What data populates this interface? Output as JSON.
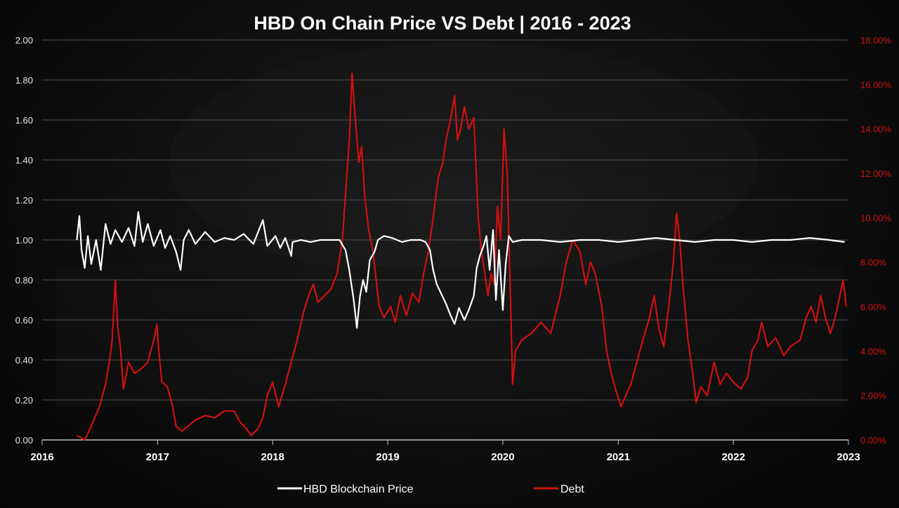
{
  "chart_data": {
    "type": "line",
    "title": "HBD On Chain Price VS Debt | 2016 - 2023",
    "x_ticks": [
      "2016",
      "2017",
      "2018",
      "2019",
      "2020",
      "2021",
      "2022",
      "2023"
    ],
    "y_left": {
      "range": [
        0,
        2
      ],
      "ticks": [
        "0.00",
        "0.20",
        "0.40",
        "0.60",
        "0.80",
        "1.00",
        "1.20",
        "1.40",
        "1.60",
        "1.80",
        "2.00"
      ]
    },
    "y_right": {
      "range": [
        0,
        18
      ],
      "unit": "%",
      "ticks": [
        "0.00%",
        "2.00%",
        "4.00%",
        "6.00%",
        "8.00%",
        "10.00%",
        "12.00%",
        "14.00%",
        "16.00%",
        "18.00%"
      ]
    },
    "grid": "horizontal",
    "legend_position": "bottom",
    "series": [
      {
        "name": "HBD Blockchain Price",
        "axis": "left",
        "color": "#ffffff",
        "points": [
          [
            "2016-04-20",
            1.0
          ],
          [
            "2016-04-28",
            1.12
          ],
          [
            "2016-05-05",
            0.95
          ],
          [
            "2016-05-15",
            0.86
          ],
          [
            "2016-05-25",
            1.02
          ],
          [
            "2016-06-05",
            0.88
          ],
          [
            "2016-06-20",
            1.0
          ],
          [
            "2016-07-05",
            0.85
          ],
          [
            "2016-07-20",
            1.08
          ],
          [
            "2016-08-05",
            0.98
          ],
          [
            "2016-08-20",
            1.05
          ],
          [
            "2016-09-10",
            0.99
          ],
          [
            "2016-10-01",
            1.06
          ],
          [
            "2016-10-20",
            0.97
          ],
          [
            "2016-11-01",
            1.14
          ],
          [
            "2016-11-15",
            0.99
          ],
          [
            "2016-12-01",
            1.08
          ],
          [
            "2016-12-20",
            0.97
          ],
          [
            "2017-01-10",
            1.05
          ],
          [
            "2017-01-25",
            0.96
          ],
          [
            "2017-02-10",
            1.02
          ],
          [
            "2017-03-01",
            0.94
          ],
          [
            "2017-03-15",
            0.85
          ],
          [
            "2017-03-25",
            1.0
          ],
          [
            "2017-04-10",
            1.05
          ],
          [
            "2017-05-01",
            0.98
          ],
          [
            "2017-06-01",
            1.04
          ],
          [
            "2017-07-01",
            0.99
          ],
          [
            "2017-08-01",
            1.01
          ],
          [
            "2017-09-01",
            1.0
          ],
          [
            "2017-10-01",
            1.03
          ],
          [
            "2017-11-01",
            0.98
          ],
          [
            "2017-12-01",
            1.1
          ],
          [
            "2017-12-15",
            0.97
          ],
          [
            "2018-01-10",
            1.02
          ],
          [
            "2018-01-25",
            0.96
          ],
          [
            "2018-02-10",
            1.01
          ],
          [
            "2018-03-01",
            0.92
          ],
          [
            "2018-03-05",
            0.99
          ],
          [
            "2018-04-01",
            1.0
          ],
          [
            "2018-05-01",
            0.99
          ],
          [
            "2018-06-01",
            1.0
          ],
          [
            "2018-07-01",
            1.0
          ],
          [
            "2018-08-01",
            1.0
          ],
          [
            "2018-08-20",
            0.95
          ],
          [
            "2018-09-01",
            0.85
          ],
          [
            "2018-09-15",
            0.7
          ],
          [
            "2018-09-25",
            0.56
          ],
          [
            "2018-10-05",
            0.72
          ],
          [
            "2018-10-15",
            0.8
          ],
          [
            "2018-10-25",
            0.74
          ],
          [
            "2018-11-05",
            0.9
          ],
          [
            "2018-11-20",
            0.94
          ],
          [
            "2018-12-01",
            1.0
          ],
          [
            "2018-12-20",
            1.02
          ],
          [
            "2019-01-15",
            1.01
          ],
          [
            "2019-02-15",
            0.99
          ],
          [
            "2019-03-15",
            1.0
          ],
          [
            "2019-04-15",
            1.0
          ],
          [
            "2019-05-01",
            0.99
          ],
          [
            "2019-05-15",
            0.95
          ],
          [
            "2019-05-25",
            0.85
          ],
          [
            "2019-06-05",
            0.78
          ],
          [
            "2019-06-20",
            0.73
          ],
          [
            "2019-07-05",
            0.68
          ],
          [
            "2019-07-20",
            0.62
          ],
          [
            "2019-08-01",
            0.58
          ],
          [
            "2019-08-15",
            0.66
          ],
          [
            "2019-09-01",
            0.6
          ],
          [
            "2019-09-15",
            0.65
          ],
          [
            "2019-10-01",
            0.72
          ],
          [
            "2019-10-10",
            0.86
          ],
          [
            "2019-10-20",
            0.92
          ],
          [
            "2019-11-01",
            0.97
          ],
          [
            "2019-11-10",
            1.02
          ],
          [
            "2019-11-20",
            0.85
          ],
          [
            "2019-12-01",
            1.05
          ],
          [
            "2019-12-10",
            0.7
          ],
          [
            "2019-12-20",
            0.95
          ],
          [
            "2020-01-01",
            0.65
          ],
          [
            "2020-01-10",
            0.88
          ],
          [
            "2020-01-20",
            1.02
          ],
          [
            "2020-02-01",
            0.99
          ],
          [
            "2020-03-01",
            1.0
          ],
          [
            "2020-05-01",
            1.0
          ],
          [
            "2020-07-01",
            0.99
          ],
          [
            "2020-09-01",
            1.0
          ],
          [
            "2020-11-01",
            1.0
          ],
          [
            "2021-01-01",
            0.99
          ],
          [
            "2021-03-01",
            1.0
          ],
          [
            "2021-05-01",
            1.01
          ],
          [
            "2021-07-01",
            1.0
          ],
          [
            "2021-09-01",
            0.99
          ],
          [
            "2021-11-01",
            1.0
          ],
          [
            "2022-01-01",
            1.0
          ],
          [
            "2022-03-01",
            0.99
          ],
          [
            "2022-05-01",
            1.0
          ],
          [
            "2022-07-01",
            1.0
          ],
          [
            "2022-09-01",
            1.01
          ],
          [
            "2022-11-01",
            1.0
          ],
          [
            "2022-12-20",
            0.99
          ]
        ]
      },
      {
        "name": "Debt",
        "axis": "right",
        "color": "#d01010",
        "points": [
          [
            "2016-04-20",
            0.2
          ],
          [
            "2016-05-15",
            0.0
          ],
          [
            "2016-06-01",
            0.5
          ],
          [
            "2016-07-01",
            1.5
          ],
          [
            "2016-07-20",
            2.5
          ],
          [
            "2016-08-01",
            3.5
          ],
          [
            "2016-08-10",
            4.5
          ],
          [
            "2016-08-20",
            7.2
          ],
          [
            "2016-08-28",
            5.0
          ],
          [
            "2016-09-05",
            4.2
          ],
          [
            "2016-09-15",
            2.3
          ],
          [
            "2016-10-01",
            3.5
          ],
          [
            "2016-10-20",
            3.0
          ],
          [
            "2016-11-10",
            3.2
          ],
          [
            "2016-12-01",
            3.5
          ],
          [
            "2016-12-20",
            4.5
          ],
          [
            "2016-12-30",
            5.2
          ],
          [
            "2017-01-05",
            4.0
          ],
          [
            "2017-01-15",
            2.6
          ],
          [
            "2017-02-01",
            2.4
          ],
          [
            "2017-02-15",
            1.7
          ],
          [
            "2017-03-01",
            0.6
          ],
          [
            "2017-03-20",
            0.4
          ],
          [
            "2017-04-15",
            0.7
          ],
          [
            "2017-05-01",
            0.9
          ],
          [
            "2017-06-01",
            1.1
          ],
          [
            "2017-07-01",
            1.0
          ],
          [
            "2017-08-01",
            1.3
          ],
          [
            "2017-09-01",
            1.3
          ],
          [
            "2017-09-20",
            0.8
          ],
          [
            "2017-10-10",
            0.5
          ],
          [
            "2017-10-25",
            0.2
          ],
          [
            "2017-11-15",
            0.5
          ],
          [
            "2017-12-01",
            1.0
          ],
          [
            "2017-12-15",
            2.0
          ],
          [
            "2018-01-01",
            2.6
          ],
          [
            "2018-01-20",
            1.5
          ],
          [
            "2018-02-10",
            2.5
          ],
          [
            "2018-03-01",
            3.5
          ],
          [
            "2018-03-20",
            4.5
          ],
          [
            "2018-04-10",
            5.8
          ],
          [
            "2018-04-25",
            6.5
          ],
          [
            "2018-05-10",
            7.0
          ],
          [
            "2018-05-25",
            6.2
          ],
          [
            "2018-06-15",
            6.5
          ],
          [
            "2018-07-05",
            6.8
          ],
          [
            "2018-07-25",
            7.5
          ],
          [
            "2018-08-10",
            9.0
          ],
          [
            "2018-08-20",
            11.0
          ],
          [
            "2018-09-01",
            13.5
          ],
          [
            "2018-09-10",
            16.5
          ],
          [
            "2018-09-20",
            14.5
          ],
          [
            "2018-10-01",
            12.5
          ],
          [
            "2018-10-10",
            13.2
          ],
          [
            "2018-10-20",
            11.0
          ],
          [
            "2018-11-01",
            9.5
          ],
          [
            "2018-11-15",
            8.5
          ],
          [
            "2018-11-25",
            7.2
          ],
          [
            "2018-12-05",
            6.0
          ],
          [
            "2018-12-20",
            5.5
          ],
          [
            "2019-01-10",
            6.0
          ],
          [
            "2019-01-25",
            5.3
          ],
          [
            "2019-02-10",
            6.5
          ],
          [
            "2019-03-01",
            5.6
          ],
          [
            "2019-03-20",
            6.6
          ],
          [
            "2019-04-10",
            6.2
          ],
          [
            "2019-04-25",
            7.5
          ],
          [
            "2019-05-10",
            8.5
          ],
          [
            "2019-05-25",
            10.0
          ],
          [
            "2019-06-10",
            11.8
          ],
          [
            "2019-06-25",
            12.5
          ],
          [
            "2019-07-05",
            13.5
          ],
          [
            "2019-07-20",
            14.5
          ],
          [
            "2019-08-01",
            15.5
          ],
          [
            "2019-08-10",
            13.5
          ],
          [
            "2019-08-20",
            14.0
          ],
          [
            "2019-09-01",
            15.0
          ],
          [
            "2019-09-15",
            14.0
          ],
          [
            "2019-10-01",
            14.5
          ],
          [
            "2019-10-15",
            10.0
          ],
          [
            "2019-10-25",
            8.5
          ],
          [
            "2019-11-05",
            7.5
          ],
          [
            "2019-11-15",
            6.5
          ],
          [
            "2019-11-25",
            7.5
          ],
          [
            "2019-12-05",
            7.0
          ],
          [
            "2019-12-15",
            10.5
          ],
          [
            "2019-12-25",
            9.0
          ],
          [
            "2020-01-05",
            14.0
          ],
          [
            "2020-01-15",
            12.0
          ],
          [
            "2020-01-25",
            6.5
          ],
          [
            "2020-02-01",
            2.5
          ],
          [
            "2020-02-10",
            4.0
          ],
          [
            "2020-03-01",
            4.5
          ],
          [
            "2020-04-01",
            4.8
          ],
          [
            "2020-05-01",
            5.3
          ],
          [
            "2020-06-01",
            4.8
          ],
          [
            "2020-07-01",
            6.5
          ],
          [
            "2020-07-20",
            8.0
          ],
          [
            "2020-08-10",
            9.0
          ],
          [
            "2020-09-01",
            8.5
          ],
          [
            "2020-09-20",
            7.0
          ],
          [
            "2020-10-05",
            8.0
          ],
          [
            "2020-10-20",
            7.5
          ],
          [
            "2020-11-10",
            6.0
          ],
          [
            "2020-11-25",
            4.0
          ],
          [
            "2020-12-10",
            3.0
          ],
          [
            "2020-12-25",
            2.2
          ],
          [
            "2021-01-10",
            1.5
          ],
          [
            "2021-01-25",
            2.0
          ],
          [
            "2021-02-10",
            2.5
          ],
          [
            "2021-03-01",
            3.5
          ],
          [
            "2021-03-20",
            4.5
          ],
          [
            "2021-04-10",
            5.5
          ],
          [
            "2021-04-25",
            6.5
          ],
          [
            "2021-05-10",
            5.0
          ],
          [
            "2021-05-25",
            4.2
          ],
          [
            "2021-06-10",
            6.0
          ],
          [
            "2021-06-25",
            8.0
          ],
          [
            "2021-07-05",
            10.2
          ],
          [
            "2021-07-15",
            9.0
          ],
          [
            "2021-07-25",
            7.0
          ],
          [
            "2021-08-10",
            4.5
          ],
          [
            "2021-08-25",
            3.0
          ],
          [
            "2021-09-05",
            1.7
          ],
          [
            "2021-09-20",
            2.4
          ],
          [
            "2021-10-10",
            2.0
          ],
          [
            "2021-11-01",
            3.5
          ],
          [
            "2021-11-20",
            2.5
          ],
          [
            "2021-12-10",
            3.0
          ],
          [
            "2022-01-01",
            2.6
          ],
          [
            "2022-01-25",
            2.3
          ],
          [
            "2022-02-15",
            2.8
          ],
          [
            "2022-03-01",
            4.0
          ],
          [
            "2022-03-20",
            4.5
          ],
          [
            "2022-04-01",
            5.3
          ],
          [
            "2022-04-20",
            4.2
          ],
          [
            "2022-05-15",
            4.6
          ],
          [
            "2022-06-10",
            3.8
          ],
          [
            "2022-07-01",
            4.2
          ],
          [
            "2022-08-01",
            4.5
          ],
          [
            "2022-08-20",
            5.5
          ],
          [
            "2022-09-05",
            6.0
          ],
          [
            "2022-09-20",
            5.3
          ],
          [
            "2022-10-05",
            6.5
          ],
          [
            "2022-10-20",
            5.5
          ],
          [
            "2022-11-05",
            4.8
          ],
          [
            "2022-11-20",
            5.5
          ],
          [
            "2022-12-05",
            6.5
          ],
          [
            "2022-12-15",
            7.2
          ],
          [
            "2022-12-25",
            6.0
          ]
        ]
      }
    ]
  }
}
